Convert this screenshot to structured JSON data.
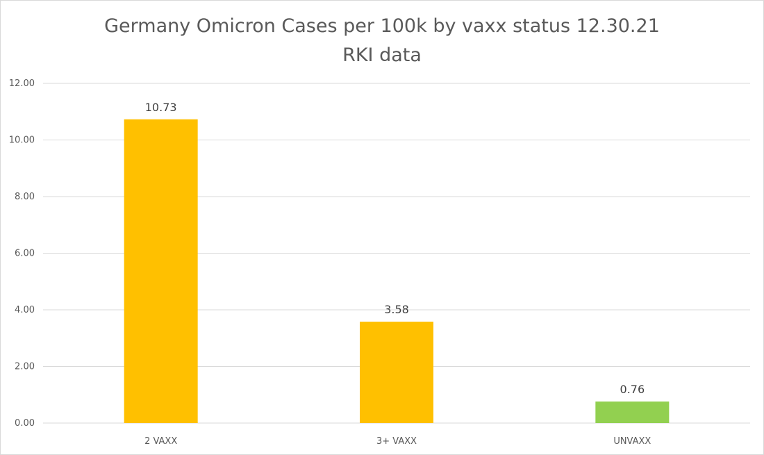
{
  "chart_data": {
    "type": "bar",
    "title": "Germany Omicron Cases per 100k by vaxx status 12.30.21",
    "subtitle": "RKI data",
    "categories": [
      "2 VAXX",
      "3+ VAXX",
      "UNVAXX"
    ],
    "values": [
      10.73,
      3.58,
      0.76
    ],
    "value_labels": [
      "10.73",
      "3.58",
      "0.76"
    ],
    "colors": [
      "#FFC000",
      "#FFC000",
      "#92D050"
    ],
    "xlabel": "",
    "ylabel": "",
    "ylim": [
      0,
      12
    ],
    "yticks": [
      "0.00",
      "2.00",
      "4.00",
      "6.00",
      "8.00",
      "10.00",
      "12.00"
    ],
    "grid": true,
    "legend": "none"
  }
}
